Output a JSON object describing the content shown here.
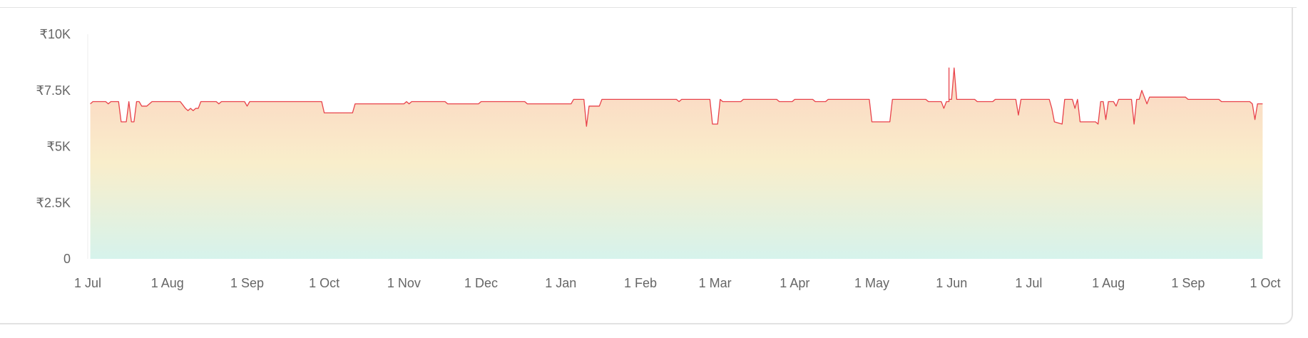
{
  "chart_data": {
    "type": "area",
    "title": "",
    "xlabel": "",
    "ylabel": "",
    "ylim": [
      0,
      10000
    ],
    "y_ticks": [
      {
        "value": 0,
        "label": "0"
      },
      {
        "value": 2500,
        "label": "₹2.5K"
      },
      {
        "value": 5000,
        "label": "₹5K"
      },
      {
        "value": 7500,
        "label": "₹7.5K"
      },
      {
        "value": 10000,
        "label": "₹10K"
      }
    ],
    "x_range": [
      "2023-07-01",
      "2024-10-01"
    ],
    "x_ticks": [
      {
        "date": "2023-07-01",
        "label": "1 Jul"
      },
      {
        "date": "2023-08-01",
        "label": "1 Aug"
      },
      {
        "date": "2023-09-01",
        "label": "1 Sep"
      },
      {
        "date": "2023-10-01",
        "label": "1 Oct"
      },
      {
        "date": "2023-11-01",
        "label": "1 Nov"
      },
      {
        "date": "2023-12-01",
        "label": "1 Dec"
      },
      {
        "date": "2024-01-01",
        "label": "1 Jan"
      },
      {
        "date": "2024-02-01",
        "label": "1 Feb"
      },
      {
        "date": "2024-03-01",
        "label": "1 Mar"
      },
      {
        "date": "2024-04-01",
        "label": "1 Apr"
      },
      {
        "date": "2024-05-01",
        "label": "1 May"
      },
      {
        "date": "2024-06-01",
        "label": "1 Jun"
      },
      {
        "date": "2024-07-01",
        "label": "1 Jul"
      },
      {
        "date": "2024-08-01",
        "label": "1 Aug"
      },
      {
        "date": "2024-09-01",
        "label": "1 Sep"
      },
      {
        "date": "2024-10-01",
        "label": "1 Oct"
      }
    ],
    "grid": false,
    "legend": "none",
    "colors": {
      "line": "#e8424a",
      "fill_top": "#fcd4c2",
      "fill_mid": "#f9eecb",
      "fill_bottom": "#d6f3ec",
      "axis": "#eeeeee",
      "tick_text": "#666666"
    },
    "series": [
      {
        "points": [
          [
            "2023-07-02",
            6900
          ],
          [
            "2023-07-03",
            7000
          ],
          [
            "2023-07-08",
            7000
          ],
          [
            "2023-07-09",
            6900
          ],
          [
            "2023-07-10",
            7000
          ],
          [
            "2023-07-13",
            7000
          ],
          [
            "2023-07-14",
            6100
          ],
          [
            "2023-07-16",
            6100
          ],
          [
            "2023-07-17",
            7000
          ],
          [
            "2023-07-18",
            6100
          ],
          [
            "2023-07-19",
            6100
          ],
          [
            "2023-07-20",
            7000
          ],
          [
            "2023-07-21",
            7000
          ],
          [
            "2023-07-22",
            6800
          ],
          [
            "2023-07-24",
            6800
          ],
          [
            "2023-07-26",
            7000
          ],
          [
            "2023-08-06",
            7000
          ],
          [
            "2023-08-08",
            6700
          ],
          [
            "2023-08-09",
            6600
          ],
          [
            "2023-08-10",
            6700
          ],
          [
            "2023-08-11",
            6600
          ],
          [
            "2023-08-12",
            6700
          ],
          [
            "2023-08-13",
            6700
          ],
          [
            "2023-08-14",
            7000
          ],
          [
            "2023-08-20",
            7000
          ],
          [
            "2023-08-21",
            6900
          ],
          [
            "2023-08-22",
            7000
          ],
          [
            "2023-08-31",
            7000
          ],
          [
            "2023-09-01",
            6800
          ],
          [
            "2023-09-02",
            7000
          ],
          [
            "2023-09-30",
            7000
          ],
          [
            "2023-10-01",
            6500
          ],
          [
            "2023-10-12",
            6500
          ],
          [
            "2023-10-13",
            6900
          ],
          [
            "2023-11-01",
            6900
          ],
          [
            "2023-11-02",
            7000
          ],
          [
            "2023-11-03",
            6900
          ],
          [
            "2023-11-04",
            7000
          ],
          [
            "2023-11-17",
            7000
          ],
          [
            "2023-11-18",
            6900
          ],
          [
            "2023-11-30",
            6900
          ],
          [
            "2023-12-01",
            7000
          ],
          [
            "2023-12-18",
            7000
          ],
          [
            "2023-12-19",
            6900
          ],
          [
            "2024-01-05",
            6900
          ],
          [
            "2024-01-06",
            7100
          ],
          [
            "2024-01-10",
            7100
          ],
          [
            "2024-01-11",
            5900
          ],
          [
            "2024-01-12",
            6800
          ],
          [
            "2024-01-16",
            6800
          ],
          [
            "2024-01-17",
            7100
          ],
          [
            "2024-02-15",
            7100
          ],
          [
            "2024-02-16",
            7000
          ],
          [
            "2024-02-17",
            7100
          ],
          [
            "2024-02-28",
            7100
          ],
          [
            "2024-02-29",
            6000
          ],
          [
            "2024-03-02",
            6000
          ],
          [
            "2024-03-03",
            7100
          ],
          [
            "2024-03-04",
            7000
          ],
          [
            "2024-03-11",
            7000
          ],
          [
            "2024-03-12",
            7100
          ],
          [
            "2024-03-25",
            7100
          ],
          [
            "2024-03-26",
            7000
          ],
          [
            "2024-03-31",
            7000
          ],
          [
            "2024-04-01",
            7100
          ],
          [
            "2024-04-08",
            7100
          ],
          [
            "2024-04-09",
            7000
          ],
          [
            "2024-04-13",
            7000
          ],
          [
            "2024-04-14",
            7100
          ],
          [
            "2024-04-30",
            7100
          ],
          [
            "2024-05-01",
            6100
          ],
          [
            "2024-05-08",
            6100
          ],
          [
            "2024-05-09",
            7100
          ],
          [
            "2024-05-22",
            7100
          ],
          [
            "2024-05-23",
            7000
          ],
          [
            "2024-05-28",
            7000
          ],
          [
            "2024-05-29",
            6700
          ],
          [
            "2024-05-30",
            7000
          ],
          [
            "2024-05-31",
            7000
          ],
          [
            "2024-05-31",
            8500
          ],
          [
            "2024-05-31",
            7100
          ],
          [
            "2024-06-01",
            7100
          ],
          [
            "2024-06-02",
            8500
          ],
          [
            "2024-06-03",
            7100
          ],
          [
            "2024-06-10",
            7100
          ],
          [
            "2024-06-11",
            7000
          ],
          [
            "2024-06-17",
            7000
          ],
          [
            "2024-06-18",
            7100
          ],
          [
            "2024-06-26",
            7100
          ],
          [
            "2024-06-27",
            6400
          ],
          [
            "2024-06-28",
            7100
          ],
          [
            "2024-07-09",
            7100
          ],
          [
            "2024-07-10",
            6700
          ],
          [
            "2024-07-11",
            6100
          ],
          [
            "2024-07-14",
            6000
          ],
          [
            "2024-07-15",
            7100
          ],
          [
            "2024-07-18",
            7100
          ],
          [
            "2024-07-19",
            6700
          ],
          [
            "2024-07-20",
            7100
          ],
          [
            "2024-07-21",
            6100
          ],
          [
            "2024-07-27",
            6100
          ],
          [
            "2024-07-28",
            6000
          ],
          [
            "2024-07-29",
            7000
          ],
          [
            "2024-07-30",
            7000
          ],
          [
            "2024-07-31",
            6200
          ],
          [
            "2024-08-01",
            7000
          ],
          [
            "2024-08-03",
            7000
          ],
          [
            "2024-08-04",
            6800
          ],
          [
            "2024-08-05",
            7100
          ],
          [
            "2024-08-10",
            7100
          ],
          [
            "2024-08-11",
            6000
          ],
          [
            "2024-08-12",
            7100
          ],
          [
            "2024-08-13",
            7100
          ],
          [
            "2024-08-14",
            7500
          ],
          [
            "2024-08-15",
            7200
          ],
          [
            "2024-08-16",
            6900
          ],
          [
            "2024-08-17",
            7200
          ],
          [
            "2024-08-31",
            7200
          ],
          [
            "2024-09-01",
            7100
          ],
          [
            "2024-09-13",
            7100
          ],
          [
            "2024-09-14",
            7000
          ],
          [
            "2024-09-25",
            7000
          ],
          [
            "2024-09-26",
            6900
          ],
          [
            "2024-09-27",
            6200
          ],
          [
            "2024-09-28",
            6900
          ],
          [
            "2024-09-30",
            6900
          ]
        ]
      }
    ]
  }
}
